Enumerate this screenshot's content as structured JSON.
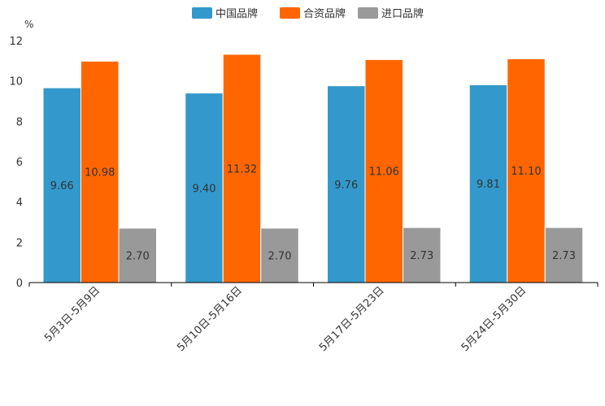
{
  "chart_data": {
    "type": "bar",
    "title": "",
    "xlabel": "",
    "ylabel": "%",
    "ylim": [
      0,
      12
    ],
    "yticks": [
      "0",
      "2",
      "4",
      "6",
      "8",
      "10",
      "12"
    ],
    "grid": false,
    "legend_position": "top-center",
    "categories": [
      "5月3日-5月9日",
      "5月10日-5月16日",
      "5月17日-5月23日",
      "5月24日-5月30日"
    ],
    "series": [
      {
        "name": "中国品牌",
        "color": "#3399cc",
        "values": [
          9.66,
          9.4,
          9.76,
          9.81
        ],
        "labels": [
          "9.66",
          "9.40",
          "9.76",
          "9.81"
        ]
      },
      {
        "name": "合资品牌",
        "color": "#ff6600",
        "values": [
          10.98,
          11.32,
          11.06,
          11.1
        ],
        "labels": [
          "10.98",
          "11.32",
          "11.06",
          "11.10"
        ]
      },
      {
        "name": "进口品牌",
        "color": "#999999",
        "values": [
          2.7,
          2.7,
          2.73,
          2.73
        ],
        "labels": [
          "2.70",
          "2.70",
          "2.73",
          "2.73"
        ]
      }
    ]
  }
}
